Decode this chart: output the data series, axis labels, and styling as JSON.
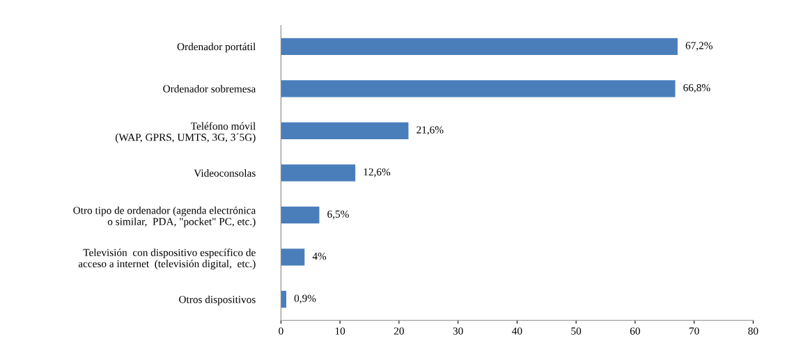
{
  "chart_data": {
    "type": "bar",
    "orientation": "horizontal",
    "categories": [
      "Ordenador portátil",
      "Ordenador sobremesa",
      "Teléfono móvil\n(WAP, GPRS, UMTS, 3G, 3´5G)",
      "Videoconsolas",
      "Otro tipo de ordenador (agenda electrónica\no similar,  PDA, \"pocket\" PC, etc.)",
      "Televisión  con dispositivo específico de\nacceso a internet  (televisión digital,  etc.)",
      "Otros dispositivos"
    ],
    "values": [
      67.2,
      66.8,
      21.6,
      12.6,
      6.5,
      4,
      0.9
    ],
    "value_labels": [
      "67,2%",
      "66,8%",
      "21,6%",
      "12,6%",
      "6,5%",
      "4%",
      "0,9%"
    ],
    "color": "#4a7ebb",
    "xlim": [
      0,
      80
    ],
    "xticks": [
      0,
      10,
      20,
      30,
      40,
      50,
      60,
      70,
      80
    ],
    "grid": false
  }
}
